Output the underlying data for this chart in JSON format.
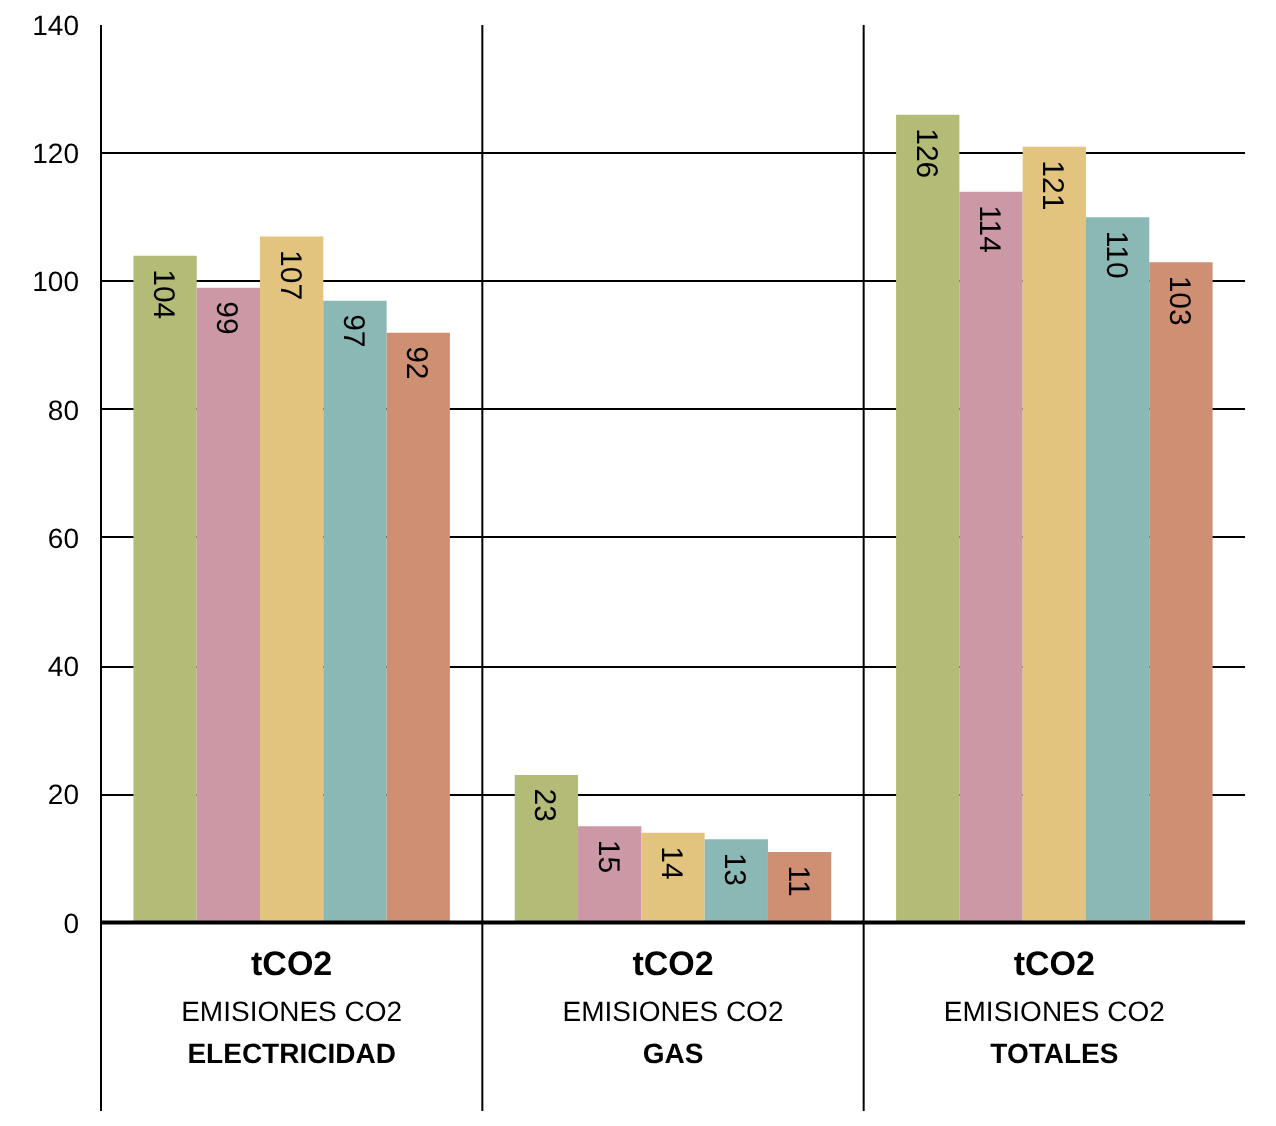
{
  "chart_data": {
    "type": "bar",
    "categories": [
      "tCO2\nEMISIONES CO2\nELECTRICIDAD",
      "tCO2\nEMISIONES CO2\nGAS",
      "tCO2\nEMISIONES CO2\nTOTALES"
    ],
    "series": [
      {
        "color": "#b3bb77",
        "values": [
          104,
          23,
          126
        ]
      },
      {
        "color": "#cc98a5",
        "values": [
          99,
          15,
          114
        ]
      },
      {
        "color": "#e2c47f",
        "values": [
          107,
          14,
          121
        ]
      },
      {
        "color": "#8ab8b5",
        "values": [
          97,
          13,
          110
        ]
      },
      {
        "color": "#cf8f72",
        "values": [
          92,
          11,
          103
        ]
      }
    ],
    "ylim": [
      0,
      140
    ],
    "yticks": [
      0,
      20,
      40,
      60,
      80,
      100,
      120,
      140
    ],
    "grid": true,
    "data_labels": true
  }
}
